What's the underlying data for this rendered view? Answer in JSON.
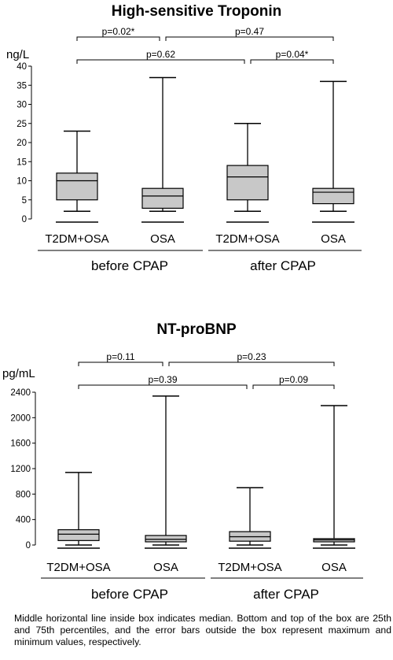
{
  "chart_data": [
    {
      "type": "box",
      "title": "High-sensitive Troponin",
      "unit": "ng/L",
      "ylim": [
        0,
        40
      ],
      "yticks": [
        0,
        5,
        10,
        15,
        20,
        25,
        30,
        35,
        40
      ],
      "groups": [
        {
          "label": "T2DM+OSA",
          "period": "before CPAP",
          "min": 2,
          "q1": 5,
          "median": 10,
          "q3": 12,
          "max": 23
        },
        {
          "label": "OSA",
          "period": "before CPAP",
          "min": 2,
          "q1": 2.8,
          "median": 6,
          "q3": 8,
          "max": 37
        },
        {
          "label": "T2DM+OSA",
          "period": "after CPAP",
          "min": 2,
          "q1": 5,
          "median": 11,
          "q3": 14,
          "max": 25
        },
        {
          "label": "OSA",
          "period": "after CPAP",
          "min": 2,
          "q1": 4,
          "median": 7,
          "q3": 8,
          "max": 36
        }
      ],
      "periods": [
        "before CPAP",
        "after CPAP"
      ],
      "comparisons": [
        {
          "text": "p=0.02*",
          "from": 0,
          "to": 1,
          "level": 1
        },
        {
          "text": "p=0.47",
          "from": 1,
          "to": 3,
          "level": 1
        },
        {
          "text": "p=0.62",
          "from": 0,
          "to": 2,
          "level": 2
        },
        {
          "text": "p=0.04*",
          "from": 2,
          "to": 3,
          "level": 2
        }
      ]
    },
    {
      "type": "box",
      "title": "NT-proBNP",
      "unit": "pg/mL",
      "ylim": [
        0,
        2400
      ],
      "yticks": [
        0,
        400,
        800,
        1200,
        1600,
        2000,
        2400
      ],
      "groups": [
        {
          "label": "T2DM+OSA",
          "period": "before CPAP",
          "min": 0,
          "q1": 70,
          "median": 170,
          "q3": 240,
          "max": 1140
        },
        {
          "label": "OSA",
          "period": "before CPAP",
          "min": 0,
          "q1": 50,
          "median": 90,
          "q3": 150,
          "max": 2340
        },
        {
          "label": "T2DM+OSA",
          "period": "after CPAP",
          "min": 0,
          "q1": 60,
          "median": 130,
          "q3": 210,
          "max": 900
        },
        {
          "label": "OSA",
          "period": "after CPAP",
          "min": 0,
          "q1": 50,
          "median": 80,
          "q3": 100,
          "max": 2190
        }
      ],
      "periods": [
        "before CPAP",
        "after CPAP"
      ],
      "comparisons": [
        {
          "text": "p=0.11",
          "from": 0,
          "to": 1,
          "level": 1
        },
        {
          "text": "p=0.23",
          "from": 1,
          "to": 3,
          "level": 1
        },
        {
          "text": "p=0.39",
          "from": 0,
          "to": 2,
          "level": 2
        },
        {
          "text": "p=0.09",
          "from": 2,
          "to": 3,
          "level": 2
        }
      ]
    }
  ],
  "caption": "Middle horizontal line inside box indicates median. Bottom and top of the box are 25th and 75th percentiles, and the error bars outside the box represent maximum and minimum values, respectively."
}
